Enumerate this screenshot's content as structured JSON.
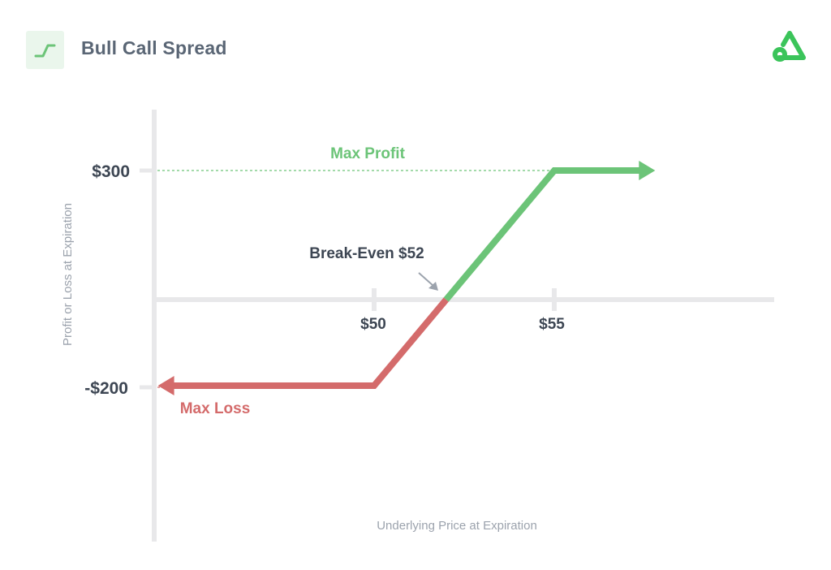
{
  "header": {
    "title": "Bull Call Spread",
    "icon": "step-up-icon",
    "logo": "brand-logo-icon"
  },
  "colors": {
    "profit": "#6cc478",
    "loss": "#d46b6b",
    "axis": "#e8e8ea",
    "label": "#3d4653",
    "muted": "#9ca3ad",
    "pointer": "#9ca3ad"
  },
  "chart_data": {
    "type": "line",
    "title": "Bull Call Spread",
    "xlabel": "Underlying Price at Expiration",
    "ylabel": "Profit or Loss at Expiration",
    "x_ticks": [
      {
        "value": 50,
        "label": "$50"
      },
      {
        "value": 55,
        "label": "$55"
      }
    ],
    "y_ticks": [
      {
        "value": 300,
        "label": "$300"
      },
      {
        "value": -200,
        "label": "-$200"
      }
    ],
    "series": [
      {
        "x": [
          44,
          50,
          52,
          55,
          57.8
        ],
        "y": [
          -200,
          -200,
          0,
          300,
          300
        ]
      }
    ],
    "annotations": {
      "max_profit": {
        "label": "Max Profit",
        "value": 300
      },
      "max_loss": {
        "label": "Max Loss",
        "value": -200
      },
      "break_even": {
        "label": "Break-Even $52",
        "x": 52,
        "y": 0
      }
    },
    "grid": false,
    "legend": "none"
  }
}
